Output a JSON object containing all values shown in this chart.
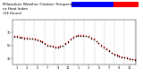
{
  "title": "Milwaukee Weather Outdoor Temperature\nvs Heat Index\n(24 Hours)",
  "bg_color": "#ffffff",
  "plot_bg": "#ffffff",
  "grid_positions": [
    2,
    4,
    6,
    8,
    10,
    12,
    14,
    16,
    18,
    20,
    22,
    24
  ],
  "temp_color": "#000000",
  "heat_color": "#ff0000",
  "bar_blue_color": "#0000ff",
  "bar_red_color": "#ff0000",
  "hours": [
    0,
    1,
    2,
    3,
    4,
    5,
    6,
    7,
    8,
    9,
    10,
    11,
    12,
    13,
    14,
    15,
    16,
    17,
    18,
    19,
    20,
    21,
    22,
    23,
    24,
    25,
    26,
    27,
    28,
    29,
    30,
    31,
    32,
    33,
    34,
    35,
    36,
    37,
    38,
    39,
    40,
    41,
    42,
    43,
    44,
    45,
    46,
    47
  ],
  "temp_y": [
    63,
    63,
    62,
    62,
    61,
    61,
    60,
    60,
    59,
    58,
    57,
    55,
    52,
    50,
    49,
    48,
    47,
    47,
    48,
    49,
    52,
    55,
    59,
    62,
    64,
    65,
    65,
    65,
    64,
    63,
    61,
    59,
    56,
    53,
    50,
    47,
    44,
    41,
    38,
    36,
    34,
    33,
    32,
    31,
    30,
    29,
    28,
    27
  ],
  "heat_y": [
    64,
    64,
    63,
    63,
    62,
    62,
    61,
    61,
    60,
    59,
    58,
    56,
    53,
    51,
    50,
    49,
    48,
    48,
    49,
    50,
    53,
    56,
    60,
    63,
    65,
    66,
    66,
    66,
    65,
    64,
    62,
    60,
    57,
    54,
    51,
    48,
    45,
    42,
    39,
    37,
    35,
    34,
    33,
    32,
    31,
    30,
    29,
    28
  ],
  "ylim_min": 20,
  "ylim_max": 90,
  "xlim_min": -0.5,
  "xlim_max": 47.5,
  "yticks": [
    30,
    50,
    70
  ],
  "ytick_labels": [
    "30",
    "50",
    "70"
  ],
  "xtick_pos": [
    1,
    5,
    9,
    13,
    17,
    21,
    25,
    29,
    33,
    37,
    41,
    45
  ],
  "xtick_labels": [
    "1",
    "3",
    "5",
    "7",
    "9",
    "11",
    "1",
    "3",
    "5",
    "7",
    "9",
    "11"
  ]
}
